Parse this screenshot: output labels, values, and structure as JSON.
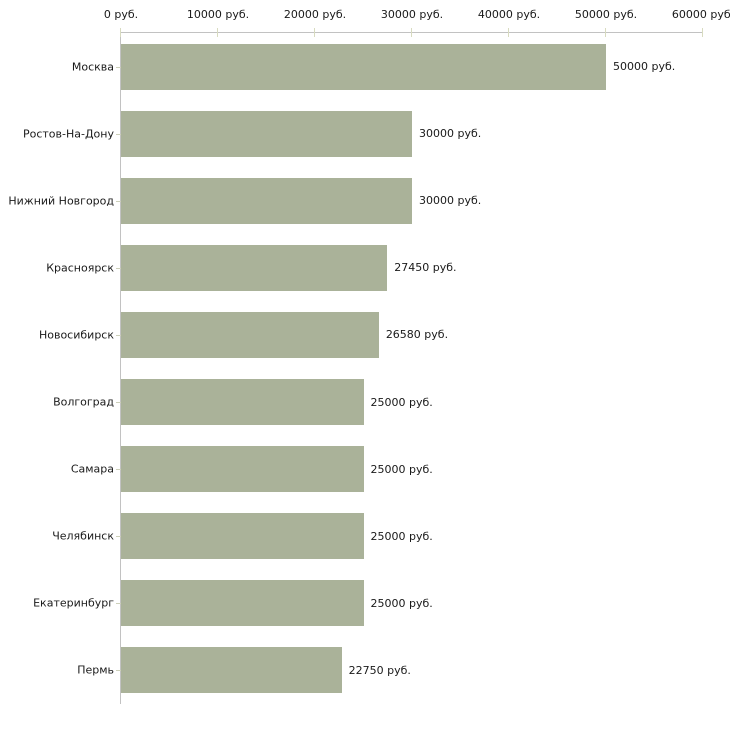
{
  "chart_data": {
    "type": "bar",
    "orientation": "horizontal",
    "title": "",
    "xlabel": "",
    "ylabel": "",
    "unit": "руб.",
    "categories": [
      "Москва",
      "Ростов-На-Дону",
      "Нижний Новгород",
      "Красноярск",
      "Новосибирск",
      "Волгоград",
      "Самара",
      "Челябинск",
      "Екатеринбург",
      "Пермь"
    ],
    "values": [
      50000,
      30000,
      30000,
      27450,
      26580,
      25000,
      25000,
      25000,
      25000,
      22750
    ],
    "value_labels": [
      "50000 руб.",
      "30000 руб.",
      "30000 руб.",
      "27450 руб.",
      "26580 руб.",
      "25000 руб.",
      "25000 руб.",
      "25000 руб.",
      "25000 руб.",
      "22750 руб."
    ],
    "x_ticks": [
      0,
      10000,
      20000,
      30000,
      40000,
      50000,
      60000
    ],
    "x_tick_labels": [
      "0 руб.",
      "10000 руб.",
      "20000 руб.",
      "30000 руб.",
      "40000 руб.",
      "50000 руб.",
      "60000 руб."
    ],
    "xlim": [
      0,
      60000
    ],
    "grid": false,
    "legend": false,
    "colors": {
      "bar": "#aab299",
      "axis_line": "#c2c2c2",
      "x_tick_mark": "#d8dbc0",
      "y_tick_mark": "#cdd0ba",
      "text": "#1a1a1a",
      "background": "#ffffff"
    }
  }
}
